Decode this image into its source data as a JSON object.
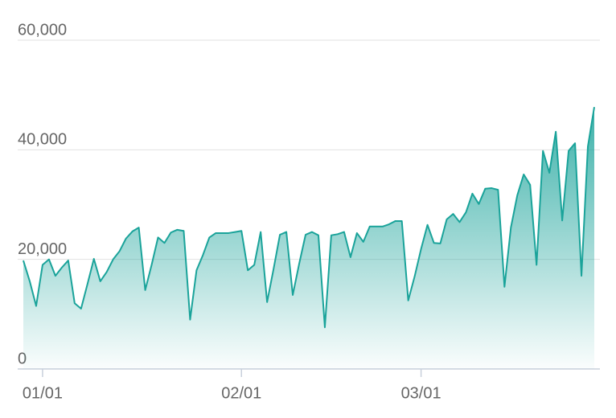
{
  "chart_data": {
    "type": "area",
    "categories": [
      null,
      null,
      null,
      "01/01",
      null,
      null,
      null,
      null,
      null,
      null,
      null,
      null,
      null,
      null,
      null,
      null,
      null,
      null,
      null,
      null,
      null,
      null,
      null,
      null,
      null,
      null,
      null,
      null,
      null,
      null,
      null,
      null,
      null,
      null,
      "02/01",
      null,
      null,
      null,
      null,
      null,
      null,
      null,
      null,
      null,
      null,
      null,
      null,
      null,
      null,
      null,
      null,
      null,
      null,
      null,
      null,
      null,
      null,
      null,
      null,
      null,
      null,
      null,
      "03/01",
      null,
      null,
      null,
      null,
      null,
      null,
      null,
      null,
      null,
      null,
      null,
      null,
      null,
      null,
      null,
      null,
      null,
      null,
      null,
      null,
      null,
      null,
      null,
      null,
      null,
      null,
      null
    ],
    "values": [
      19800,
      16000,
      11500,
      19000,
      20000,
      17000,
      18500,
      19800,
      12000,
      11000,
      15500,
      20100,
      16000,
      17700,
      20000,
      21500,
      23800,
      25100,
      25800,
      14400,
      19000,
      24000,
      23000,
      24900,
      25400,
      25200,
      9000,
      18000,
      20800,
      24000,
      24800,
      24800,
      24800,
      25000,
      25200,
      18000,
      19000,
      25000,
      12200,
      18200,
      24500,
      25000,
      13500,
      19200,
      24500,
      25000,
      24400,
      7600,
      24400,
      24600,
      25000,
      20400,
      24800,
      23200,
      26000,
      26000,
      26000,
      26400,
      27000,
      27000,
      12500,
      16900,
      21900,
      26300,
      23000,
      22900,
      27300,
      28300,
      26800,
      28600,
      32000,
      30100,
      32900,
      33000,
      32700,
      15000,
      25800,
      31700,
      35500,
      33600,
      19000,
      39800,
      35800,
      43300,
      27100,
      39800,
      41200,
      17000,
      40600,
      47800
    ],
    "color": "#1aa39a",
    "ylim": [
      0,
      60000
    ],
    "yticks": [
      0,
      {
        "value": 20000,
        "label": "20,000"
      },
      {
        "value": 40000,
        "label": "40,000"
      },
      {
        "value": 60000,
        "label": "60,000"
      }
    ],
    "grid": true
  }
}
